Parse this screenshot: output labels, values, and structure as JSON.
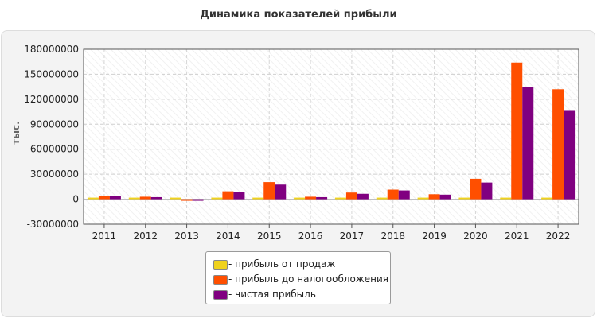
{
  "chart_data": {
    "type": "bar",
    "title": "Динамика показателей прибыли",
    "ylabel": "тыс.",
    "xlabel": "",
    "categories": [
      "2011",
      "2012",
      "2013",
      "2014",
      "2015",
      "2016",
      "2017",
      "2018",
      "2019",
      "2020",
      "2021",
      "2022"
    ],
    "ylim": [
      -30000000,
      180000000
    ],
    "yticks": [
      "180000000",
      "150000000",
      "120000000",
      "90000000",
      "60000000",
      "30000000",
      "0",
      "-30000000"
    ],
    "ytick_values": [
      180000000,
      150000000,
      120000000,
      90000000,
      60000000,
      30000000,
      0,
      -30000000
    ],
    "grid": true,
    "legend_position": "bottom-center",
    "series": [
      {
        "name": "- прибыль от продаж",
        "color": "#f0d21e",
        "values": [
          1500000,
          1500000,
          1200000,
          1500000,
          1500000,
          1500000,
          1500000,
          1500000,
          1500000,
          1500000,
          1500000,
          1500000
        ]
      },
      {
        "name": "- прибыль до налогообложения",
        "color": "#ff4f00",
        "values": [
          3500000,
          3000000,
          -1500000,
          9500000,
          20500000,
          3000000,
          8000000,
          11500000,
          6000000,
          24500000,
          164000000,
          132000000
        ]
      },
      {
        "name": "- чистая прибыль",
        "color": "#800080",
        "values": [
          3500000,
          2500000,
          -1000000,
          8500000,
          17500000,
          2500000,
          6500000,
          10500000,
          5500000,
          20000000,
          134500000,
          107000000
        ]
      }
    ]
  }
}
